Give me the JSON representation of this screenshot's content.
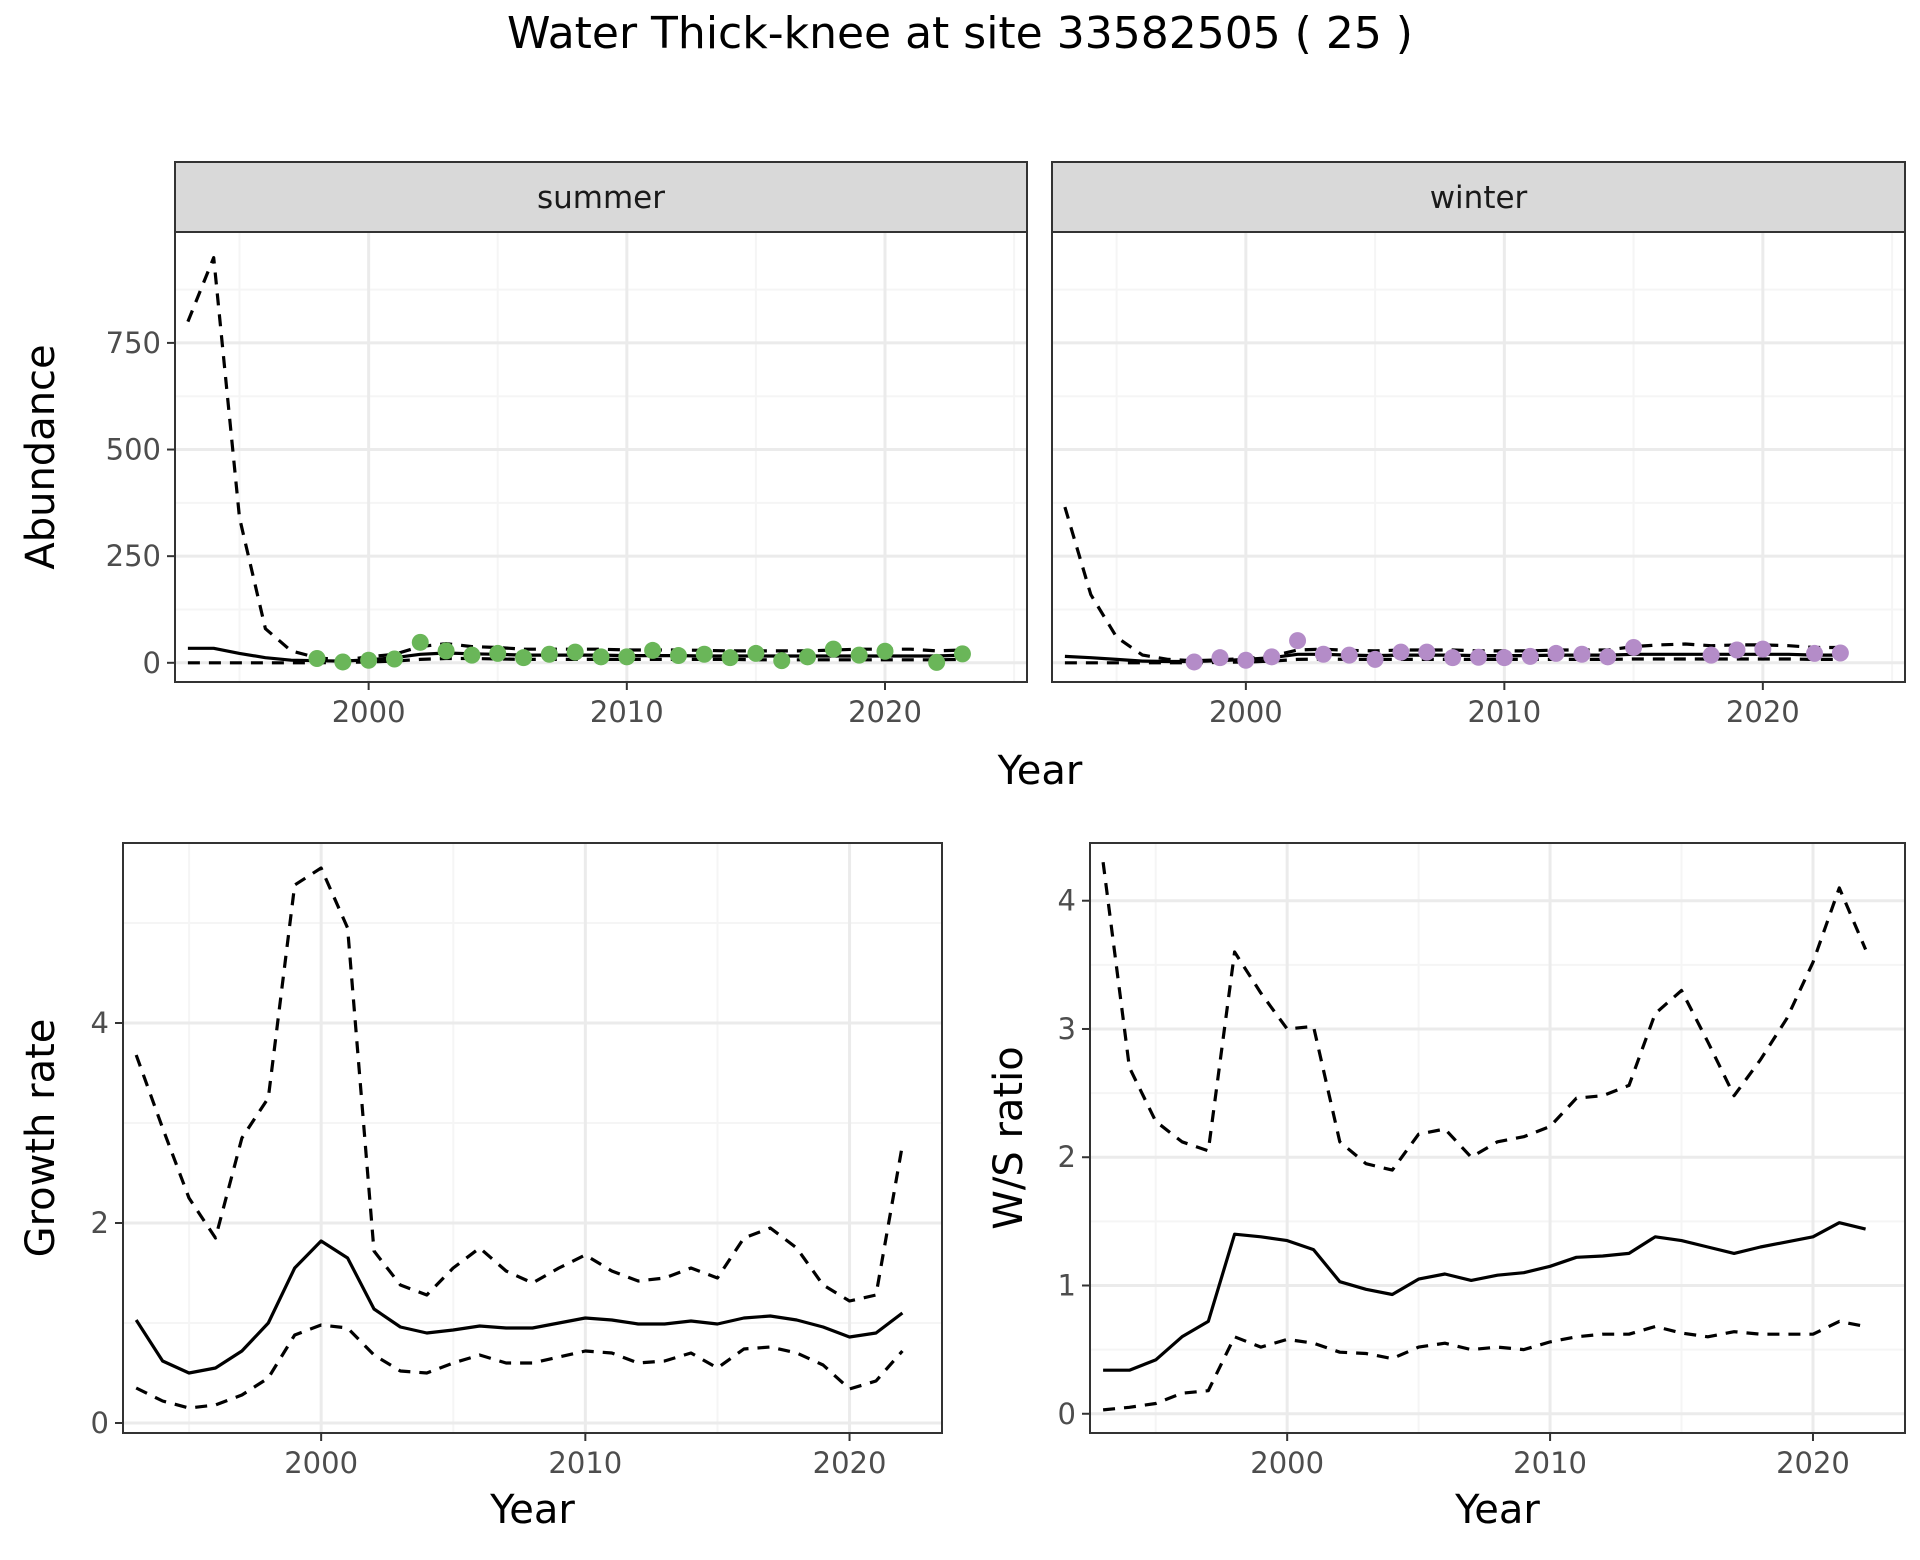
{
  "figure": {
    "title": "Water Thick-knee at site 33582505 ( 25 )",
    "top_xlabel": "Year"
  },
  "colors": {
    "summer_points": "#6ab659",
    "winter_points": "#b48cc8",
    "lines": "#000000",
    "strip_fill": "#d9d9d9",
    "panel_border": "#333333",
    "grid_major": "#ebebeb",
    "grid_minor": "#f5f5f5"
  },
  "chart_data": [
    {
      "type": "line",
      "panel": "summer",
      "strip_label": "summer",
      "xlabel": "",
      "ylabel": "Abundance",
      "xlim": [
        1992.5,
        2025.5
      ],
      "ylim": [
        -45,
        1010
      ],
      "xticks": [
        2000,
        2010,
        2020
      ],
      "yticks": [
        0,
        250,
        500,
        750
      ],
      "grid": true,
      "series": [
        {
          "style": "solid",
          "x": [
            1993,
            1994,
            1995,
            1996,
            1997,
            1998,
            1999,
            2000,
            2001,
            2002,
            2003,
            2004,
            2005,
            2006,
            2007,
            2008,
            2009,
            2010,
            2011,
            2012,
            2013,
            2014,
            2015,
            2016,
            2017,
            2018,
            2019,
            2020,
            2021,
            2022,
            2023
          ],
          "values": [
            34,
            34,
            22,
            12,
            6,
            5,
            4,
            7,
            12,
            20,
            23,
            21,
            20,
            18,
            18,
            18,
            18,
            17,
            17,
            17,
            16,
            16,
            16,
            16,
            16,
            16,
            16,
            16,
            16,
            16,
            18
          ]
        },
        {
          "style": "dashed",
          "x": [
            1993,
            1994,
            1995,
            1996,
            1997,
            1998,
            1999,
            2000,
            2001,
            2002,
            2003,
            2004,
            2005,
            2006,
            2007,
            2008,
            2009,
            2010,
            2011,
            2012,
            2013,
            2014,
            2015,
            2016,
            2017,
            2018,
            2019,
            2020,
            2021,
            2022,
            2023
          ],
          "values": [
            800,
            950,
            340,
            80,
            28,
            12,
            6,
            14,
            20,
            38,
            45,
            38,
            36,
            32,
            32,
            32,
            32,
            30,
            30,
            30,
            29,
            28,
            28,
            28,
            28,
            30,
            32,
            32,
            32,
            28,
            30
          ]
        },
        {
          "style": "dashed",
          "x": [
            1993,
            1994,
            1995,
            1996,
            1997,
            1998,
            1999,
            2000,
            2001,
            2002,
            2003,
            2004,
            2005,
            2006,
            2007,
            2008,
            2009,
            2010,
            2011,
            2012,
            2013,
            2014,
            2015,
            2016,
            2017,
            2018,
            2019,
            2020,
            2021,
            2022,
            2023
          ],
          "values": [
            0,
            0,
            0,
            0,
            0,
            0,
            1,
            2,
            4,
            8,
            10,
            10,
            9,
            8,
            8,
            8,
            8,
            8,
            8,
            8,
            8,
            8,
            7,
            7,
            7,
            7,
            7,
            7,
            7,
            7,
            8
          ]
        },
        {
          "style": "points",
          "x": [
            1998,
            1999,
            2000,
            2001,
            2002,
            2003,
            2004,
            2005,
            2006,
            2007,
            2008,
            2009,
            2010,
            2011,
            2012,
            2013,
            2014,
            2015,
            2016,
            2017,
            2018,
            2019,
            2020,
            2022,
            2023
          ],
          "values": [
            10,
            2,
            6,
            9,
            48,
            28,
            18,
            22,
            12,
            20,
            25,
            14,
            14,
            29,
            17,
            20,
            12,
            22,
            5,
            14,
            32,
            18,
            27,
            1,
            21
          ]
        }
      ]
    },
    {
      "type": "line",
      "panel": "winter",
      "strip_label": "winter",
      "xlabel": "",
      "ylabel": "",
      "xlim": [
        1992.5,
        2025.5
      ],
      "ylim": [
        -45,
        1010
      ],
      "xticks": [
        2000,
        2010,
        2020
      ],
      "yticks": [
        0,
        250,
        500,
        750
      ],
      "grid": true,
      "series": [
        {
          "style": "solid",
          "x": [
            1993,
            1994,
            1995,
            1996,
            1997,
            1998,
            1999,
            2000,
            2001,
            2002,
            2003,
            2004,
            2005,
            2006,
            2007,
            2008,
            2009,
            2010,
            2011,
            2012,
            2013,
            2014,
            2015,
            2016,
            2017,
            2018,
            2019,
            2020,
            2021,
            2022,
            2023
          ],
          "values": [
            15,
            12,
            8,
            4,
            3,
            3,
            5,
            8,
            12,
            20,
            20,
            18,
            17,
            18,
            18,
            18,
            17,
            17,
            17,
            18,
            18,
            18,
            20,
            20,
            20,
            20,
            20,
            20,
            20,
            18,
            18
          ]
        },
        {
          "style": "dashed",
          "x": [
            1993,
            1994,
            1995,
            1996,
            1997,
            1998,
            1999,
            2000,
            2001,
            2002,
            2003,
            2004,
            2005,
            2006,
            2007,
            2008,
            2009,
            2010,
            2011,
            2012,
            2013,
            2014,
            2015,
            2016,
            2017,
            2018,
            2019,
            2020,
            2021,
            2022,
            2023
          ],
          "values": [
            365,
            160,
            60,
            18,
            8,
            5,
            7,
            10,
            16,
            30,
            32,
            29,
            28,
            30,
            30,
            30,
            28,
            28,
            28,
            30,
            30,
            30,
            38,
            42,
            44,
            40,
            42,
            42,
            40,
            36,
            36
          ]
        },
        {
          "style": "dashed",
          "x": [
            1993,
            1994,
            1995,
            1996,
            1997,
            1998,
            1999,
            2000,
            2001,
            2002,
            2003,
            2004,
            2005,
            2006,
            2007,
            2008,
            2009,
            2010,
            2011,
            2012,
            2013,
            2014,
            2015,
            2016,
            2017,
            2018,
            2019,
            2020,
            2021,
            2022,
            2023
          ],
          "values": [
            0,
            0,
            0,
            0,
            0,
            0,
            1,
            2,
            4,
            8,
            9,
            8,
            8,
            8,
            8,
            8,
            8,
            8,
            8,
            8,
            8,
            8,
            9,
            9,
            9,
            9,
            9,
            9,
            9,
            8,
            8
          ]
        },
        {
          "style": "points",
          "x": [
            1998,
            1999,
            2000,
            2001,
            2002,
            2003,
            2004,
            2005,
            2006,
            2007,
            2008,
            2009,
            2010,
            2011,
            2012,
            2013,
            2014,
            2015,
            2018,
            2019,
            2020,
            2022,
            2023
          ],
          "values": [
            2,
            12,
            6,
            14,
            52,
            20,
            18,
            8,
            25,
            25,
            12,
            13,
            12,
            15,
            22,
            20,
            14,
            36,
            18,
            30,
            32,
            22,
            23
          ]
        }
      ]
    },
    {
      "type": "line",
      "panel": "growth",
      "xlabel": "Year",
      "ylabel": "Growth rate",
      "xlim": [
        1992.5,
        2023.5
      ],
      "ylim": [
        -0.1,
        5.8
      ],
      "xticks": [
        2000,
        2010,
        2020
      ],
      "yticks": [
        0,
        2,
        4
      ],
      "grid": true,
      "series": [
        {
          "style": "solid",
          "x": [
            1993,
            1994,
            1995,
            1996,
            1997,
            1998,
            1999,
            2000,
            2001,
            2002,
            2003,
            2004,
            2005,
            2006,
            2007,
            2008,
            2009,
            2010,
            2011,
            2012,
            2013,
            2014,
            2015,
            2016,
            2017,
            2018,
            2019,
            2020,
            2021,
            2022
          ],
          "values": [
            1.03,
            0.62,
            0.5,
            0.55,
            0.72,
            1.0,
            1.55,
            1.82,
            1.65,
            1.14,
            0.96,
            0.9,
            0.93,
            0.97,
            0.95,
            0.95,
            1.0,
            1.05,
            1.03,
            0.99,
            0.99,
            1.02,
            0.99,
            1.05,
            1.07,
            1.03,
            0.96,
            0.86,
            0.9,
            1.1
          ]
        },
        {
          "style": "dashed",
          "x": [
            1993,
            1994,
            1995,
            1996,
            1997,
            1998,
            1999,
            2000,
            2001,
            2002,
            2003,
            2004,
            2005,
            2006,
            2007,
            2008,
            2009,
            2010,
            2011,
            2012,
            2013,
            2014,
            2015,
            2016,
            2017,
            2018,
            2019,
            2020,
            2021,
            2022
          ],
          "values": [
            3.68,
            2.95,
            2.25,
            1.85,
            2.85,
            3.25,
            5.38,
            5.55,
            4.95,
            1.72,
            1.38,
            1.28,
            1.55,
            1.75,
            1.52,
            1.4,
            1.55,
            1.68,
            1.52,
            1.42,
            1.45,
            1.55,
            1.45,
            1.85,
            1.95,
            1.75,
            1.38,
            1.22,
            1.28,
            2.78
          ]
        },
        {
          "style": "dashed",
          "x": [
            1993,
            1994,
            1995,
            1996,
            1997,
            1998,
            1999,
            2000,
            2001,
            2002,
            2003,
            2004,
            2005,
            2006,
            2007,
            2008,
            2009,
            2010,
            2011,
            2012,
            2013,
            2014,
            2015,
            2016,
            2017,
            2018,
            2019,
            2020,
            2021,
            2022
          ],
          "values": [
            0.35,
            0.22,
            0.15,
            0.18,
            0.28,
            0.45,
            0.88,
            0.98,
            0.95,
            0.68,
            0.52,
            0.5,
            0.6,
            0.68,
            0.6,
            0.6,
            0.66,
            0.72,
            0.7,
            0.6,
            0.62,
            0.7,
            0.55,
            0.74,
            0.76,
            0.7,
            0.58,
            0.34,
            0.42,
            0.72
          ]
        }
      ]
    },
    {
      "type": "line",
      "panel": "ratio",
      "xlabel": "Year",
      "ylabel": "W/S ratio",
      "xlim": [
        1992.5,
        2023.5
      ],
      "ylim": [
        -0.15,
        4.45
      ],
      "xticks": [
        2000,
        2010,
        2020
      ],
      "yticks": [
        0,
        1,
        2,
        3,
        4
      ],
      "grid": true,
      "series": [
        {
          "style": "solid",
          "x": [
            1993,
            1994,
            1995,
            1996,
            1997,
            1998,
            1999,
            2000,
            2001,
            2002,
            2003,
            2004,
            2005,
            2006,
            2007,
            2008,
            2009,
            2010,
            2011,
            2012,
            2013,
            2014,
            2015,
            2016,
            2017,
            2018,
            2019,
            2020,
            2021,
            2022
          ],
          "values": [
            0.34,
            0.34,
            0.42,
            0.6,
            0.72,
            1.4,
            1.38,
            1.35,
            1.28,
            1.03,
            0.97,
            0.93,
            1.05,
            1.09,
            1.04,
            1.08,
            1.1,
            1.15,
            1.22,
            1.23,
            1.25,
            1.38,
            1.35,
            1.3,
            1.25,
            1.3,
            1.34,
            1.38,
            1.49,
            1.44
          ]
        },
        {
          "style": "dashed",
          "x": [
            1993,
            1994,
            1995,
            1996,
            1997,
            1998,
            1999,
            2000,
            2001,
            2002,
            2003,
            2004,
            2005,
            2006,
            2007,
            2008,
            2009,
            2010,
            2011,
            2012,
            2013,
            2014,
            2015,
            2016,
            2017,
            2018,
            2019,
            2020,
            2021,
            2022
          ],
          "values": [
            4.3,
            2.7,
            2.28,
            2.12,
            2.05,
            3.6,
            3.28,
            3.0,
            3.02,
            2.12,
            1.95,
            1.9,
            2.18,
            2.22,
            2.0,
            2.12,
            2.16,
            2.24,
            2.46,
            2.48,
            2.56,
            3.12,
            3.3,
            2.9,
            2.48,
            2.76,
            3.08,
            3.52,
            4.1,
            3.62
          ]
        },
        {
          "style": "dashed",
          "x": [
            1993,
            1994,
            1995,
            1996,
            1997,
            1998,
            1999,
            2000,
            2001,
            2002,
            2003,
            2004,
            2005,
            2006,
            2007,
            2008,
            2009,
            2010,
            2011,
            2012,
            2013,
            2014,
            2015,
            2016,
            2017,
            2018,
            2019,
            2020,
            2021,
            2022
          ],
          "values": [
            0.03,
            0.05,
            0.08,
            0.16,
            0.18,
            0.6,
            0.52,
            0.58,
            0.55,
            0.48,
            0.47,
            0.43,
            0.52,
            0.55,
            0.5,
            0.52,
            0.5,
            0.56,
            0.6,
            0.62,
            0.62,
            0.68,
            0.63,
            0.6,
            0.64,
            0.62,
            0.62,
            0.62,
            0.72,
            0.68
          ]
        }
      ]
    }
  ]
}
